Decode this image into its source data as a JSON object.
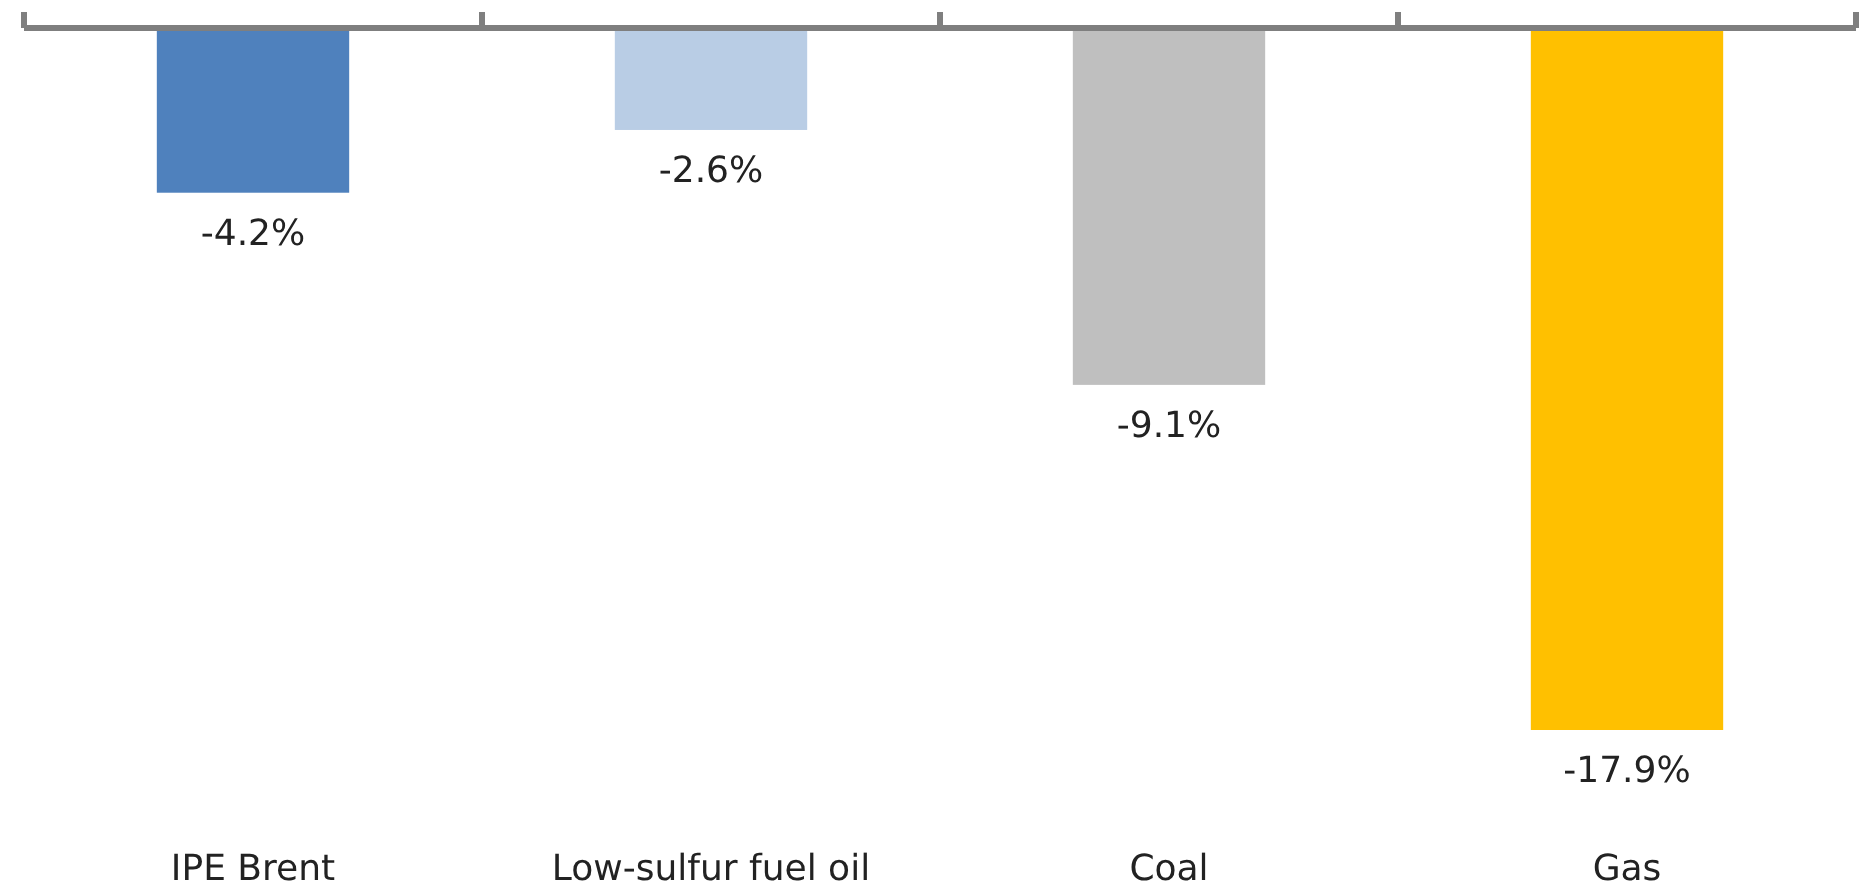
{
  "chart_data": {
    "type": "bar",
    "categories": [
      "IPE Brent",
      "Low-sulfur fuel oil",
      "Coal",
      "Gas"
    ],
    "values": [
      -4.2,
      -2.6,
      -9.1,
      -17.9
    ],
    "colors": [
      "#4f81bd",
      "#b9cde5",
      "#bfbfbf",
      "#ffc000"
    ],
    "value_labels": [
      "-4.2%",
      "-2.6%",
      "-9.1%",
      "-17.9%"
    ],
    "tick_labels": "x"
  }
}
